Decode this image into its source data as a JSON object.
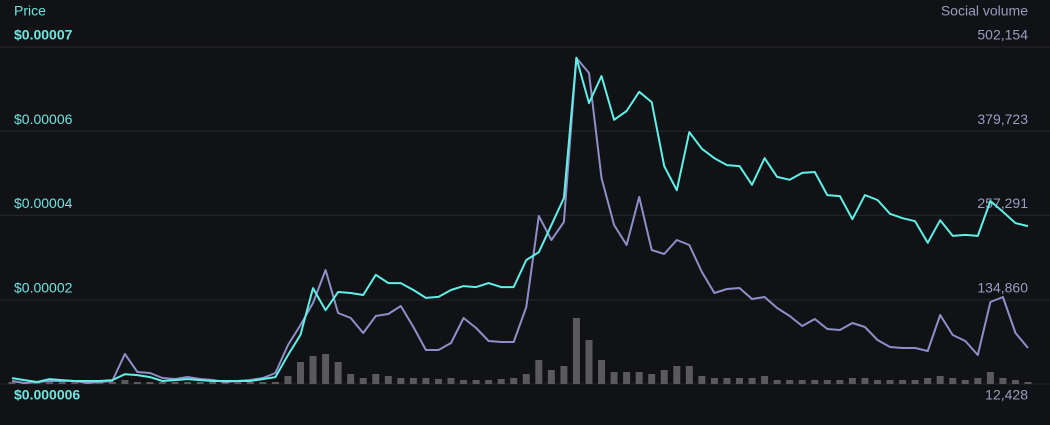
{
  "chart_data": {
    "type": "line",
    "categories": [
      null,
      null,
      null,
      null,
      null,
      null,
      null,
      null,
      null,
      null,
      null,
      null,
      null,
      null,
      null,
      null,
      null,
      null,
      null,
      null,
      null,
      null,
      null,
      null,
      null,
      null,
      null,
      null,
      null,
      null,
      null,
      null,
      null,
      null,
      null,
      null,
      null,
      null,
      null,
      null,
      null,
      null,
      null,
      null,
      null,
      null,
      null,
      null,
      null,
      null,
      null,
      null,
      null,
      null,
      null,
      null,
      null,
      null,
      null,
      null,
      null,
      null,
      null,
      null,
      null,
      null,
      null,
      null,
      null,
      null,
      null,
      null,
      null,
      null,
      null,
      null,
      null,
      null,
      null,
      null,
      null,
      null
    ],
    "ylim": [
      6e-06,
      7.45e-05
    ],
    "yticks": [
      {
        "value": 6e-06,
        "label": "$0.000006"
      },
      {
        "value": 2.31e-05,
        "label": "$0.00002"
      },
      {
        "value": 4.03e-05,
        "label": "$0.00004"
      },
      {
        "value": 5.74e-05,
        "label": "$0.00006"
      },
      {
        "value": 7.45e-05,
        "label": "$0.00007"
      }
    ],
    "y2lim": [
      12428,
      502154
    ],
    "y2ticks": [
      {
        "value": 12428,
        "label": "12,428"
      },
      {
        "value": 134860,
        "label": "134,860"
      },
      {
        "value": 257291,
        "label": "257,291"
      },
      {
        "value": 379723,
        "label": "379,723"
      },
      {
        "value": 502154,
        "label": "502,154"
      }
    ],
    "grid": true,
    "series": [
      {
        "name": "Price",
        "color": "#5ff0e6",
        "axis": "y",
        "type": "line",
        "values": [
          7.2e-06,
          6.8e-06,
          6.4e-06,
          7e-06,
          6.8e-06,
          6.6e-06,
          6.6e-06,
          6.6e-06,
          6.8e-06,
          8e-06,
          7.8e-06,
          7.4e-06,
          6.6e-06,
          6.8e-06,
          7e-06,
          6.8e-06,
          6.6e-06,
          6.6e-06,
          6.6e-06,
          6.6e-06,
          7e-06,
          7.4e-06,
          1.19e-05,
          1.6e-05,
          2.55e-05,
          2.1e-05,
          2.47e-05,
          2.45e-05,
          2.41e-05,
          2.82e-05,
          2.65e-05,
          2.65e-05,
          2.51e-05,
          2.35e-05,
          2.37e-05,
          2.51e-05,
          2.59e-05,
          2.57e-05,
          2.65e-05,
          2.57e-05,
          2.57e-05,
          3.12e-05,
          3.28e-05,
          3.83e-05,
          4.38e-05,
          7.23e-05,
          6.31e-05,
          6.86e-05,
          5.97e-05,
          6.15e-05,
          6.54e-05,
          6.33e-05,
          5.03e-05,
          4.54e-05,
          5.72e-05,
          5.38e-05,
          5.19e-05,
          5.05e-05,
          5.03e-05,
          4.65e-05,
          5.19e-05,
          4.81e-05,
          4.75e-05,
          4.89e-05,
          4.91e-05,
          4.44e-05,
          4.42e-05,
          3.95e-05,
          4.44e-05,
          4.34e-05,
          4.06e-05,
          3.97e-05,
          3.91e-05,
          3.47e-05,
          3.93e-05,
          3.61e-05,
          3.63e-05,
          3.61e-05,
          4.32e-05,
          4.1e-05,
          3.87e-05,
          3.81e-05
        ]
      },
      {
        "name": "Social volume",
        "color": "#8e8fc8",
        "axis": "y2",
        "type": "line",
        "values": [
          16788,
          13881,
          15334,
          16788,
          16788,
          16788,
          13881,
          15334,
          16788,
          56024,
          29866,
          28413,
          21147,
          19694,
          22600,
          19694,
          18241,
          15334,
          16788,
          18241,
          21147,
          28413,
          69103,
          98167,
          130137,
          178093,
          115605,
          108339,
          86541,
          111246,
          114152,
          125778,
          95260,
          61837,
          61837,
          72009,
          108339,
          93807,
          74916,
          73462,
          73462,
          124324,
          256566,
          221689,
          247846,
          486171,
          464373,
          311787,
          243489,
          214425,
          284176,
          207157,
          201344,
          221689,
          214425,
          175186,
          144669,
          150482,
          151935,
          135950,
          138856,
          122871,
          111246,
          96714,
          106886,
          92354,
          90901,
          101073,
          95260,
          76369,
          66196,
          64743,
          64743,
          60384,
          112699,
          83635,
          74916,
          54571,
          131590,
          138856,
          86541,
          64743
        ]
      },
      {
        "color": "#5a5a5c",
        "axis": "y2",
        "type": "bar",
        "values": [
          15334,
          15334,
          15334,
          15334,
          15334,
          15334,
          15334,
          15334,
          15334,
          18240,
          15334,
          15334,
          15334,
          15334,
          15334,
          15334,
          15334,
          15334,
          15334,
          15334,
          15334,
          15334,
          24052,
          44394,
          53112,
          56018,
          44394,
          26958,
          21146,
          26958,
          24052,
          21146,
          21146,
          21146,
          19693,
          21146,
          18240,
          18240,
          18240,
          19693,
          21146,
          26958,
          47300,
          32770,
          38582,
          108326,
          76360,
          47300,
          29864,
          29864,
          29864,
          26958,
          32770,
          38582,
          38582,
          24052,
          21146,
          21146,
          21146,
          21146,
          24052,
          18240,
          18240,
          18240,
          18240,
          18240,
          18240,
          21146,
          21146,
          18240,
          18240,
          18240,
          18240,
          21146,
          24052,
          21146,
          18240,
          21146,
          29864,
          21146,
          18240,
          15334
        ]
      }
    ]
  }
}
